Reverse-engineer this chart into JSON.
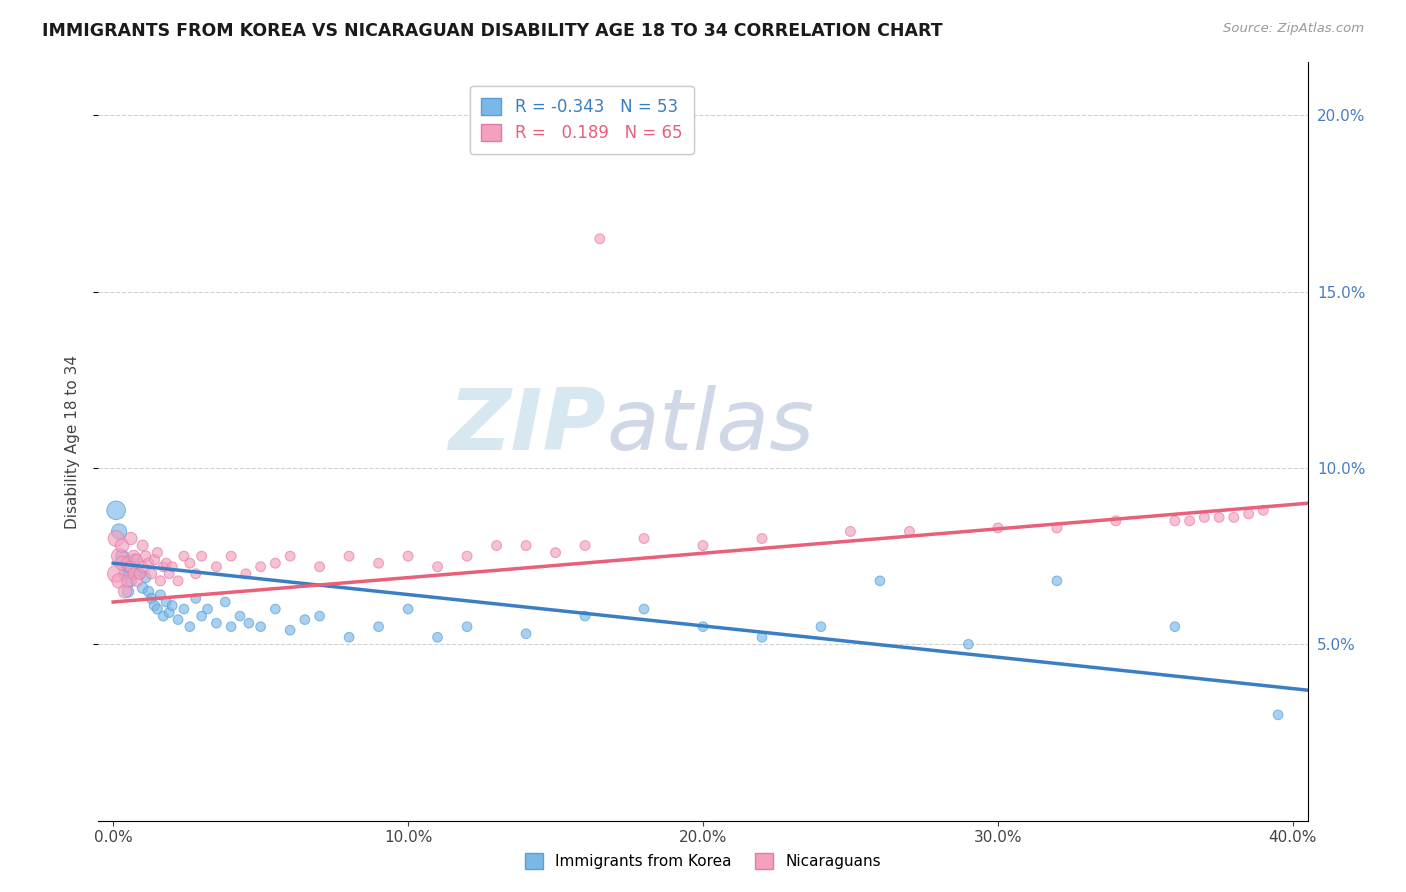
{
  "title": "IMMIGRANTS FROM KOREA VS NICARAGUAN DISABILITY AGE 18 TO 34 CORRELATION CHART",
  "source": "Source: ZipAtlas.com",
  "ylabel": "Disability Age 18 to 34",
  "xlabel_vals": [
    0.0,
    0.1,
    0.2,
    0.3,
    0.4
  ],
  "ylabel_vals": [
    0.05,
    0.1,
    0.15,
    0.2
  ],
  "xlim": [
    -0.005,
    0.405
  ],
  "ylim": [
    0.0,
    0.215
  ],
  "korea_R": -0.343,
  "korea_N": 53,
  "nicaragua_R": 0.189,
  "nicaragua_N": 65,
  "korea_color": "#7ab8e8",
  "nicaragua_color": "#f4a0be",
  "korea_edge_color": "#5a9fd4",
  "nicaragua_edge_color": "#e878a8",
  "korea_line_color": "#3a7fc4",
  "nicaragua_line_color": "#e8607a",
  "legend_korea_label": "Immigrants from Korea",
  "legend_nicaragua_label": "Nicaraguans",
  "watermark_zip": "ZIP",
  "watermark_atlas": "atlas",
  "background_color": "#ffffff",
  "grid_color": "#cccccc",
  "korea_x": [
    0.001,
    0.002,
    0.003,
    0.004,
    0.005,
    0.005,
    0.006,
    0.007,
    0.008,
    0.009,
    0.01,
    0.011,
    0.012,
    0.013,
    0.014,
    0.015,
    0.016,
    0.017,
    0.018,
    0.019,
    0.02,
    0.022,
    0.024,
    0.026,
    0.028,
    0.03,
    0.032,
    0.035,
    0.038,
    0.04,
    0.043,
    0.046,
    0.05,
    0.055,
    0.06,
    0.065,
    0.07,
    0.08,
    0.09,
    0.1,
    0.11,
    0.12,
    0.14,
    0.16,
    0.18,
    0.2,
    0.22,
    0.24,
    0.26,
    0.29,
    0.32,
    0.36,
    0.395
  ],
  "korea_y": [
    0.088,
    0.082,
    0.075,
    0.07,
    0.072,
    0.065,
    0.068,
    0.074,
    0.071,
    0.07,
    0.066,
    0.069,
    0.065,
    0.063,
    0.061,
    0.06,
    0.064,
    0.058,
    0.062,
    0.059,
    0.061,
    0.057,
    0.06,
    0.055,
    0.063,
    0.058,
    0.06,
    0.056,
    0.062,
    0.055,
    0.058,
    0.056,
    0.055,
    0.06,
    0.054,
    0.057,
    0.058,
    0.052,
    0.055,
    0.06,
    0.052,
    0.055,
    0.053,
    0.058,
    0.06,
    0.055,
    0.052,
    0.055,
    0.068,
    0.05,
    0.068,
    0.055,
    0.03
  ],
  "korea_sizes": [
    180,
    120,
    90,
    80,
    75,
    70,
    70,
    65,
    65,
    60,
    60,
    58,
    55,
    55,
    55,
    52,
    52,
    50,
    50,
    50,
    50,
    48,
    48,
    48,
    48,
    48,
    48,
    48,
    48,
    48,
    48,
    48,
    48,
    48,
    48,
    48,
    48,
    48,
    48,
    48,
    48,
    48,
    48,
    48,
    48,
    48,
    48,
    48,
    48,
    48,
    48,
    48,
    48
  ],
  "nicaragua_x": [
    0.001,
    0.001,
    0.002,
    0.002,
    0.003,
    0.003,
    0.004,
    0.005,
    0.005,
    0.006,
    0.006,
    0.007,
    0.007,
    0.008,
    0.008,
    0.009,
    0.01,
    0.01,
    0.011,
    0.012,
    0.013,
    0.014,
    0.015,
    0.016,
    0.017,
    0.018,
    0.019,
    0.02,
    0.022,
    0.024,
    0.026,
    0.028,
    0.03,
    0.035,
    0.04,
    0.045,
    0.05,
    0.055,
    0.06,
    0.07,
    0.08,
    0.09,
    0.1,
    0.11,
    0.12,
    0.13,
    0.14,
    0.15,
    0.16,
    0.18,
    0.2,
    0.22,
    0.25,
    0.27,
    0.3,
    0.32,
    0.34,
    0.36,
    0.365,
    0.37,
    0.375,
    0.38,
    0.385,
    0.39,
    0.165
  ],
  "nicaragua_y": [
    0.07,
    0.08,
    0.075,
    0.068,
    0.073,
    0.078,
    0.065,
    0.073,
    0.068,
    0.08,
    0.072,
    0.075,
    0.07,
    0.074,
    0.068,
    0.07,
    0.078,
    0.072,
    0.075,
    0.073,
    0.07,
    0.074,
    0.076,
    0.068,
    0.072,
    0.073,
    0.07,
    0.072,
    0.068,
    0.075,
    0.073,
    0.07,
    0.075,
    0.072,
    0.075,
    0.07,
    0.072,
    0.073,
    0.075,
    0.072,
    0.075,
    0.073,
    0.075,
    0.072,
    0.075,
    0.078,
    0.078,
    0.076,
    0.078,
    0.08,
    0.078,
    0.08,
    0.082,
    0.082,
    0.083,
    0.083,
    0.085,
    0.085,
    0.085,
    0.086,
    0.086,
    0.086,
    0.087,
    0.088,
    0.165
  ],
  "nicaragua_sizes": [
    150,
    130,
    120,
    110,
    100,
    95,
    90,
    85,
    80,
    78,
    75,
    72,
    70,
    68,
    65,
    63,
    62,
    60,
    58,
    56,
    55,
    54,
    52,
    52,
    50,
    50,
    50,
    50,
    50,
    50,
    50,
    50,
    50,
    50,
    50,
    50,
    50,
    50,
    50,
    50,
    50,
    50,
    50,
    50,
    50,
    50,
    50,
    50,
    50,
    50,
    50,
    50,
    50,
    50,
    50,
    50,
    50,
    50,
    50,
    50,
    50,
    50,
    50,
    50,
    50
  ],
  "korea_trend_x0": 0.0,
  "korea_trend_x1": 0.405,
  "korea_trend_y0": 0.073,
  "korea_trend_y1": 0.037,
  "nicaragua_trend_x0": 0.0,
  "nicaragua_trend_x1": 0.405,
  "nicaragua_trend_y0": 0.062,
  "nicaragua_trend_y1": 0.09
}
